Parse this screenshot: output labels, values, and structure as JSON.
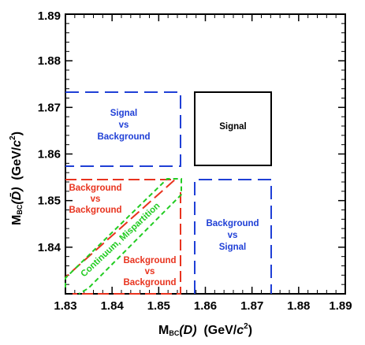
{
  "colors": {
    "signal": "#000000",
    "signal_vs_background": "#1f3fd6",
    "background_vs_background": "#e8331e",
    "continuum": "#22cc22"
  },
  "axes": {
    "xlim": [
      1.83,
      1.89
    ],
    "ylim": [
      1.83,
      1.89
    ],
    "x_ticks": [
      "1.83",
      "1.84",
      "1.85",
      "1.86",
      "1.87",
      "1.88",
      "1.89"
    ],
    "y_ticks": [
      "1.84",
      "1.85",
      "1.86",
      "1.87",
      "1.88",
      "1.89"
    ],
    "x_title": {
      "prefix": "M",
      "sub": "BC",
      "var": "(D)",
      "unit_open": "  (GeV/",
      "unit_c": "c",
      "unit_sup": "2",
      "unit_close": ")"
    },
    "y_title": {
      "prefix": "M",
      "sub": "BC",
      "var": "(D̄)",
      "unit_open": "  (GeV/",
      "unit_c": "c",
      "unit_sup": "2",
      "unit_close": ")"
    }
  },
  "regions": {
    "signal": {
      "x": [
        1.8579,
        1.8741
      ],
      "y": [
        1.8579,
        1.8741
      ],
      "label": [
        "Signal"
      ]
    },
    "signal_vs_background": {
      "x": [
        1.83,
        1.8551
      ],
      "y": [
        1.8579,
        1.8741
      ],
      "label": [
        "Signal",
        "vs",
        "Background"
      ]
    },
    "background_vs_signal": {
      "x": [
        1.8579,
        1.8741
      ],
      "y": [
        1.83,
        1.8551
      ],
      "label": [
        "Background",
        "vs",
        "Signal"
      ]
    },
    "background_vs_background_upper": {
      "label": [
        "Background",
        "vs",
        "Background"
      ]
    },
    "background_vs_background_lower": {
      "label": [
        "Background",
        "vs",
        "Background"
      ]
    },
    "continuum": {
      "label": "Continuum, Mispartition"
    }
  }
}
